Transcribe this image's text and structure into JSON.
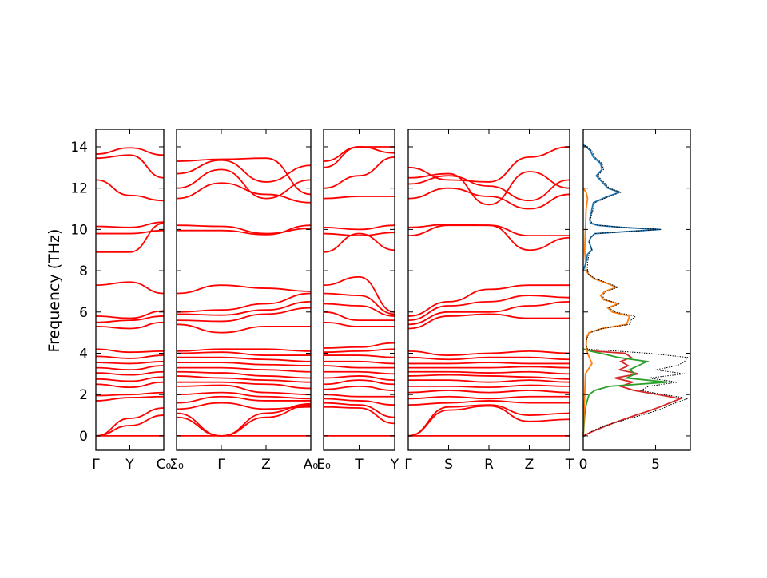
{
  "chart_data": {
    "type": "line",
    "ylabel": "Frequency (THz)",
    "ylim": [
      -0.7,
      14.85
    ],
    "yticks": [
      0,
      2,
      4,
      6,
      8,
      10,
      12,
      14
    ],
    "band_color": "#ff0000",
    "zero_line_color": "#0000ff",
    "panels": [
      {
        "labels": [
          "Γ",
          "Y",
          "C₀"
        ],
        "bands": [
          [
            0,
            0,
            0
          ],
          [
            0.0,
            0.5,
            1.0
          ],
          [
            0.0,
            0.85,
            1.35
          ],
          [
            1.7,
            1.85,
            1.9
          ],
          [
            1.95,
            2.0,
            2.1
          ],
          [
            2.5,
            2.35,
            2.6
          ],
          [
            2.75,
            2.65,
            2.85
          ],
          [
            3.05,
            2.95,
            3.1
          ],
          [
            3.3,
            3.2,
            3.4
          ],
          [
            3.55,
            3.5,
            3.6
          ],
          [
            3.85,
            3.75,
            3.9
          ],
          [
            4.2,
            4.05,
            4.1
          ],
          [
            5.3,
            5.2,
            5.5
          ],
          [
            5.5,
            5.6,
            5.8
          ],
          [
            5.8,
            5.7,
            6.05
          ],
          [
            7.3,
            7.45,
            6.9
          ],
          [
            8.9,
            8.9,
            10.3
          ],
          [
            9.8,
            9.8,
            9.95
          ],
          [
            10.15,
            10.1,
            10.35
          ],
          [
            12.4,
            11.65,
            11.4
          ],
          [
            13.45,
            13.6,
            12.5
          ],
          [
            13.65,
            13.95,
            13.6
          ]
        ]
      },
      {
        "labels": [
          "Σ₀",
          "Γ",
          "Z",
          "A₀"
        ],
        "bands": [
          [
            0.9,
            0,
            0.9,
            1.5
          ],
          [
            1.1,
            0,
            1.1,
            1.55
          ],
          [
            0,
            0,
            0,
            0
          ],
          [
            1.3,
            1.6,
            1.3,
            1.4
          ],
          [
            1.6,
            1.9,
            1.7,
            1.7
          ],
          [
            2.0,
            2.1,
            1.9,
            1.8
          ],
          [
            2.4,
            2.45,
            2.1,
            2.0
          ],
          [
            2.6,
            2.6,
            2.5,
            2.3
          ],
          [
            2.9,
            2.8,
            2.7,
            2.6
          ],
          [
            3.1,
            3.05,
            2.9,
            2.8
          ],
          [
            3.3,
            3.3,
            3.2,
            3.1
          ],
          [
            3.55,
            3.55,
            3.45,
            3.4
          ],
          [
            3.8,
            3.8,
            3.7,
            3.6
          ],
          [
            4.0,
            4.05,
            3.9,
            3.9
          ],
          [
            4.1,
            4.2,
            4.2,
            4.1
          ],
          [
            5.4,
            5.0,
            5.3,
            5.3
          ],
          [
            5.6,
            5.55,
            5.9,
            6.2
          ],
          [
            5.9,
            5.85,
            6.1,
            6.5
          ],
          [
            6.0,
            6.1,
            6.4,
            6.9
          ],
          [
            6.9,
            7.3,
            7.15,
            7.0
          ],
          [
            9.95,
            9.95,
            9.75,
            10.2
          ],
          [
            10.2,
            10.15,
            9.8,
            10.05
          ],
          [
            11.5,
            12.25,
            11.7,
            11.3
          ],
          [
            12.0,
            12.9,
            11.5,
            12.4
          ],
          [
            12.7,
            13.35,
            12.3,
            13.1
          ],
          [
            13.3,
            13.4,
            13.45,
            11.7
          ]
        ]
      },
      {
        "labels": [
          "E₀",
          "T",
          "Y"
        ],
        "bands": [
          [
            0,
            0,
            0
          ],
          [
            1.4,
            1.35,
            0.6
          ],
          [
            1.6,
            1.5,
            0.9
          ],
          [
            1.8,
            1.7,
            1.5
          ],
          [
            2.0,
            1.9,
            1.9
          ],
          [
            2.25,
            2.4,
            2.2
          ],
          [
            2.5,
            2.7,
            2.5
          ],
          [
            2.8,
            2.9,
            2.7
          ],
          [
            3.1,
            3.1,
            3.0
          ],
          [
            3.4,
            3.3,
            3.3
          ],
          [
            3.6,
            3.6,
            3.5
          ],
          [
            3.9,
            3.9,
            3.8
          ],
          [
            4.05,
            4.1,
            4.2
          ],
          [
            4.25,
            4.3,
            4.5
          ],
          [
            5.5,
            5.3,
            5.3
          ],
          [
            6.0,
            5.6,
            5.6
          ],
          [
            6.4,
            6.3,
            5.8
          ],
          [
            6.9,
            6.8,
            5.9
          ],
          [
            7.3,
            7.7,
            6.0
          ],
          [
            8.9,
            9.8,
            9.0
          ],
          [
            9.8,
            9.7,
            9.85
          ],
          [
            10.1,
            10.0,
            10.2
          ],
          [
            11.5,
            11.6,
            11.6
          ],
          [
            12.0,
            12.6,
            13.5
          ],
          [
            13.0,
            14.0,
            13.7
          ],
          [
            13.3,
            14.0,
            14.0
          ]
        ]
      },
      {
        "labels": [
          "Γ",
          "S",
          "R",
          "Z",
          "T"
        ],
        "bands": [
          [
            0,
            0,
            0,
            0,
            0
          ],
          [
            0,
            1.25,
            1.45,
            0.7,
            0.8
          ],
          [
            0,
            1.4,
            1.5,
            1.0,
            1.1
          ],
          [
            1.5,
            1.6,
            1.7,
            1.6,
            1.6
          ],
          [
            1.8,
            1.9,
            1.8,
            1.9,
            1.9
          ],
          [
            2.1,
            2.2,
            2.1,
            2.2,
            2.1
          ],
          [
            2.4,
            2.4,
            2.35,
            2.45,
            2.4
          ],
          [
            2.7,
            2.7,
            2.6,
            2.7,
            2.6
          ],
          [
            2.9,
            2.95,
            2.9,
            2.85,
            2.75
          ],
          [
            3.1,
            3.1,
            3.05,
            3.1,
            3.0
          ],
          [
            3.3,
            3.3,
            3.3,
            3.35,
            3.3
          ],
          [
            3.5,
            3.5,
            3.55,
            3.5,
            3.5
          ],
          [
            3.8,
            3.7,
            3.8,
            3.8,
            3.7
          ],
          [
            4.1,
            3.9,
            4.0,
            4.1,
            4.0
          ],
          [
            5.2,
            5.8,
            5.9,
            5.7,
            5.7
          ],
          [
            5.4,
            6.0,
            6.0,
            6.3,
            6.5
          ],
          [
            5.6,
            6.3,
            6.5,
            6.8,
            6.7
          ],
          [
            5.8,
            6.5,
            7.1,
            7.3,
            7.3
          ],
          [
            9.7,
            10.2,
            10.2,
            9.7,
            9.7
          ],
          [
            10.1,
            10.25,
            10.2,
            9.0,
            9.6
          ],
          [
            11.5,
            12.0,
            11.6,
            11.0,
            11.7
          ],
          [
            12.2,
            12.6,
            12.1,
            11.4,
            12.4
          ],
          [
            12.5,
            12.7,
            11.2,
            12.8,
            12.0
          ],
          [
            13.0,
            12.4,
            12.3,
            13.5,
            14.0
          ]
        ]
      }
    ],
    "dos": {
      "xlim": [
        0,
        7.4
      ],
      "xticks": [
        0,
        5
      ],
      "freq": [
        -0.05,
        0.1,
        0.3,
        0.5,
        0.7,
        0.9,
        1.1,
        1.3,
        1.5,
        1.7,
        1.8,
        1.9,
        2.0,
        2.2,
        2.4,
        2.6,
        2.8,
        3.0,
        3.2,
        3.4,
        3.6,
        3.8,
        4.0,
        4.2,
        4.4,
        4.6,
        4.8,
        5.0,
        5.2,
        5.4,
        5.6,
        5.8,
        6.0,
        6.2,
        6.4,
        6.6,
        6.8,
        7.0,
        7.2,
        7.4,
        7.6,
        7.8,
        8.0,
        8.4,
        8.8,
        9.0,
        9.2,
        9.4,
        9.6,
        9.8,
        10.0,
        10.1,
        10.2,
        10.3,
        10.5,
        10.8,
        11.0,
        11.3,
        11.6,
        11.8,
        12.0,
        12.3,
        12.6,
        12.9,
        13.2,
        13.5,
        13.8,
        14.0,
        14.1
      ],
      "total": [
        0,
        0.3,
        0.8,
        1.5,
        2.5,
        3.5,
        4.5,
        5.4,
        6.0,
        6.8,
        7.2,
        6.5,
        5.5,
        4.0,
        4.5,
        6.5,
        4.5,
        7.0,
        5.0,
        6.5,
        7.0,
        7.2,
        4.5,
        0.3,
        0.2,
        0.2,
        0.3,
        0.5,
        1.3,
        3.2,
        3.3,
        3.6,
        2.2,
        1.8,
        2.5,
        1.5,
        1.3,
        1.6,
        2.4,
        1.7,
        0.9,
        0.4,
        0.3,
        0.3,
        0.4,
        0.6,
        0.5,
        0.4,
        0.5,
        0.8,
        5.4,
        2.8,
        1.1,
        0.6,
        0.5,
        0.6,
        0.7,
        0.8,
        1.8,
        2.6,
        1.8,
        1.4,
        1.0,
        1.4,
        1.3,
        0.8,
        0.6,
        0.3,
        0
      ],
      "partials": [
        {
          "color": "#d62728",
          "freq": [
            0,
            0.2,
            0.4,
            0.6,
            0.8,
            1.0,
            1.2,
            1.4,
            1.6,
            1.8,
            2.0,
            2.2,
            2.4,
            2.6,
            2.8,
            3.0,
            3.2,
            3.4,
            3.6,
            3.8,
            4.0,
            4.1,
            4.2
          ],
          "values": [
            0,
            0.6,
            1.3,
            2.0,
            2.8,
            3.6,
            4.5,
            5.3,
            6.0,
            6.7,
            5.2,
            3.5,
            2.6,
            3.4,
            2.2,
            3.8,
            2.5,
            3.1,
            2.6,
            3.3,
            2.9,
            0.8,
            0
          ]
        },
        {
          "color": "#2ca02c",
          "freq": [
            0,
            0.5,
            1.0,
            1.5,
            2.0,
            2.2,
            2.4,
            2.6,
            2.8,
            3.0,
            3.2,
            3.4,
            3.6,
            3.8,
            4.0,
            4.1,
            4.2
          ],
          "values": [
            0,
            0.05,
            0.1,
            0.2,
            0.4,
            0.8,
            1.8,
            5.8,
            3.0,
            3.6,
            3.2,
            3.8,
            4.4,
            2.4,
            1.2,
            0.5,
            0
          ]
        },
        {
          "color": "#ff7f0e",
          "freq": [
            0,
            1,
            2,
            3,
            3.5,
            4.0,
            4.4,
            4.8,
            5.0,
            5.2,
            5.4,
            5.6,
            5.8,
            6.0,
            6.2,
            6.4,
            6.6,
            6.8,
            7.0,
            7.2,
            7.4,
            7.6,
            7.8,
            8.0,
            9.0,
            10.0,
            11.0,
            11.5,
            11.8,
            12.0
          ],
          "values": [
            0,
            0.05,
            0.1,
            0.15,
            0.6,
            0.3,
            0.2,
            0.25,
            0.4,
            1.3,
            3.0,
            3.1,
            3.2,
            2.0,
            1.7,
            2.4,
            1.4,
            1.2,
            1.5,
            2.3,
            1.6,
            0.8,
            0.4,
            0.2,
            0.1,
            0.15,
            0.2,
            0.3,
            0.2,
            0
          ]
        },
        {
          "color": "#1f77b4",
          "freq": [
            8.0,
            8.4,
            8.8,
            9.0,
            9.2,
            9.4,
            9.6,
            9.8,
            10.0,
            10.1,
            10.2,
            10.3,
            10.5,
            10.8,
            11.0,
            11.3,
            11.6,
            11.8,
            12.0,
            12.3,
            12.6,
            12.9,
            13.2,
            13.5,
            13.8,
            14.0,
            14.1
          ],
          "values": [
            0,
            0.2,
            0.3,
            0.6,
            0.5,
            0.4,
            0.5,
            0.8,
            5.3,
            2.7,
            1.0,
            0.5,
            0.45,
            0.55,
            0.6,
            0.7,
            1.7,
            2.5,
            1.7,
            1.3,
            0.9,
            1.3,
            1.2,
            0.7,
            0.5,
            0.2,
            0
          ]
        }
      ]
    }
  }
}
